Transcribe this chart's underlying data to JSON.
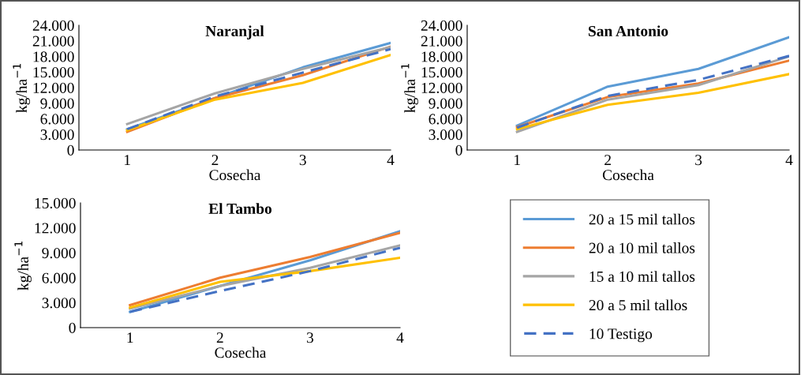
{
  "chart_data": [
    {
      "type": "line",
      "title": "Naranjal",
      "xlabel": "Cosecha",
      "ylabel": "kg/ha$^{−1}$",
      "categories": [
        "1",
        "2",
        "3",
        "4"
      ],
      "ylim": [
        0,
        24000
      ],
      "yticks": [
        0,
        {
          "value": 3000,
          "label": "3.000"
        },
        {
          "value": 6000,
          "label": "6.000"
        },
        {
          "value": 9000,
          "label": "9.000"
        },
        {
          "value": 12000,
          "label": "12.000"
        },
        {
          "value": 15000,
          "label": "15.000"
        },
        {
          "value": 18000,
          "label": "18.000"
        },
        {
          "value": 21000,
          "label": "21.000"
        },
        {
          "value": 24000,
          "label": "24.000"
        }
      ],
      "grid": false,
      "legend": false,
      "series": [
        {
          "color": "#5b9bd5",
          "values": [
            4000,
            10000,
            15900,
            20600
          ]
        },
        {
          "color": "#ed7d31",
          "values": [
            3500,
            10000,
            14400,
            19900
          ]
        },
        {
          "color": "#a5a5a5",
          "values": [
            5000,
            10900,
            15600,
            19800
          ]
        },
        {
          "color": "#ffc000",
          "values": [
            3800,
            9700,
            12900,
            18300
          ]
        },
        {
          "color": "#4472c4",
          "line_style": "dashed",
          "values": [
            4000,
            10300,
            14900,
            19400
          ]
        }
      ]
    },
    {
      "type": "line",
      "title": "San Antonio",
      "xlabel": "Cosecha",
      "ylabel": "kg/ha$^{−1}$",
      "categories": [
        "1",
        "2",
        "3",
        "4"
      ],
      "ylim": [
        0,
        24000
      ],
      "yticks": [
        0,
        {
          "value": 3000,
          "label": "3.000"
        },
        {
          "value": 6000,
          "label": "6.000"
        },
        {
          "value": 9000,
          "label": "9.000"
        },
        {
          "value": 12000,
          "label": "12.000"
        },
        {
          "value": 15000,
          "label": "15.000"
        },
        {
          "value": 18000,
          "label": "18.000"
        },
        {
          "value": 21000,
          "label": "21.000"
        },
        {
          "value": 24000,
          "label": "24.000"
        }
      ],
      "grid": false,
      "legend": false,
      "series": [
        {
          "color": "#5b9bd5",
          "values": [
            4700,
            12200,
            15600,
            21700
          ]
        },
        {
          "color": "#ed7d31",
          "values": [
            4400,
            10200,
            12800,
            17200
          ]
        },
        {
          "color": "#a5a5a5",
          "values": [
            3500,
            9700,
            12500,
            18000
          ]
        },
        {
          "color": "#ffc000",
          "values": [
            4000,
            8700,
            11000,
            14600
          ]
        },
        {
          "color": "#4472c4",
          "line_style": "dashed",
          "values": [
            4300,
            10400,
            13500,
            18100
          ]
        }
      ]
    },
    {
      "type": "line",
      "title": "El Tambo",
      "xlabel": "Cosecha",
      "ylabel": "kg/ha$^{−1}$",
      "categories": [
        "1",
        "2",
        "3",
        "4"
      ],
      "ylim": [
        0,
        15000
      ],
      "yticks": [
        0,
        {
          "value": 3000,
          "label": "3.000"
        },
        {
          "value": 6000,
          "label": "6.000"
        },
        {
          "value": 9000,
          "label": "9.000"
        },
        {
          "value": 12000,
          "label": "12.000"
        },
        {
          "value": 15000,
          "label": "15.000"
        }
      ],
      "grid": false,
      "legend": "right",
      "series": [
        {
          "name": "20 a 15 mil tallos",
          "color": "#5b9bd5",
          "values": [
            1900,
            5000,
            8100,
            11600
          ]
        },
        {
          "name": "20 a 10 mil tallos",
          "color": "#ed7d31",
          "values": [
            2700,
            6000,
            8500,
            11400
          ]
        },
        {
          "name": "15 a 10 mil tallos",
          "color": "#a5a5a5",
          "values": [
            2300,
            5000,
            7200,
            9900
          ]
        },
        {
          "name": "20 a 5 mil tallos",
          "color": "#ffc000",
          "values": [
            2400,
            5500,
            6800,
            8400
          ]
        },
        {
          "name": "10 Testigo",
          "color": "#4472c4",
          "line_style": "dashed",
          "values": [
            1900,
            4400,
            6800,
            9600
          ]
        }
      ]
    }
  ]
}
